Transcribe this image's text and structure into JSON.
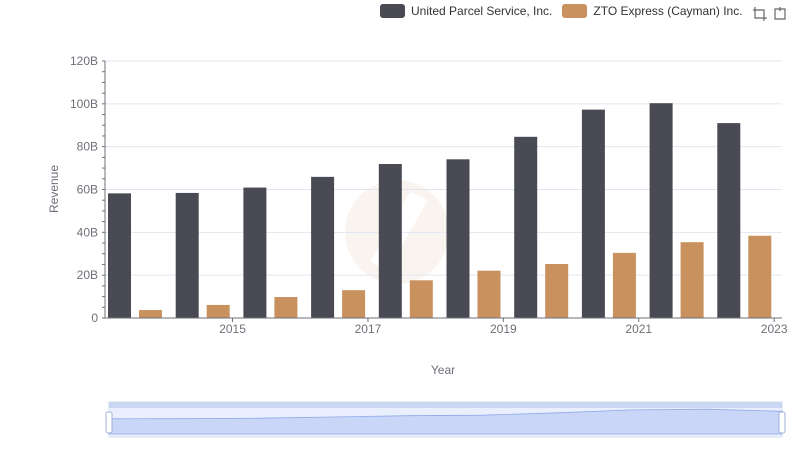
{
  "legend": {
    "items": [
      {
        "label": "United Parcel Service, Inc.",
        "color": "#4a4a55"
      },
      {
        "label": "ZTO Express (Cayman) Inc.",
        "color": "#c8915e"
      }
    ]
  },
  "toolbox": {
    "icons": [
      "zoom-icon",
      "restore-icon"
    ]
  },
  "chart_data": {
    "type": "bar",
    "xlabel": "Year",
    "ylabel": "Revenue",
    "ylim": [
      0,
      120000000000
    ],
    "y_ticks": [
      0,
      20000000000,
      40000000000,
      60000000000,
      80000000000,
      100000000000,
      120000000000
    ],
    "y_tick_labels": [
      "0",
      "20B",
      "40B",
      "60B",
      "80B",
      "100B",
      "120B"
    ],
    "categories": [
      "2014",
      "2015",
      "2016",
      "2017",
      "2018",
      "2019",
      "2020",
      "2021",
      "2022",
      "2023"
    ],
    "x_tick_labels": [
      "2015",
      "2017",
      "2019",
      "2021",
      "2023"
    ],
    "grid": true,
    "legend_position": "top-right",
    "series": [
      {
        "name": "United Parcel Service, Inc.",
        "color": "#4a4a55",
        "values": [
          58200000000,
          58400000000,
          60900000000,
          65900000000,
          71900000000,
          74100000000,
          84600000000,
          97300000000,
          100300000000,
          91000000000
        ]
      },
      {
        "name": "ZTO Express (Cayman) Inc.",
        "color": "#c8915e",
        "values": [
          3700000000,
          6100000000,
          9800000000,
          13000000000,
          17600000000,
          22100000000,
          25200000000,
          30400000000,
          35400000000,
          38400000000
        ]
      }
    ]
  }
}
